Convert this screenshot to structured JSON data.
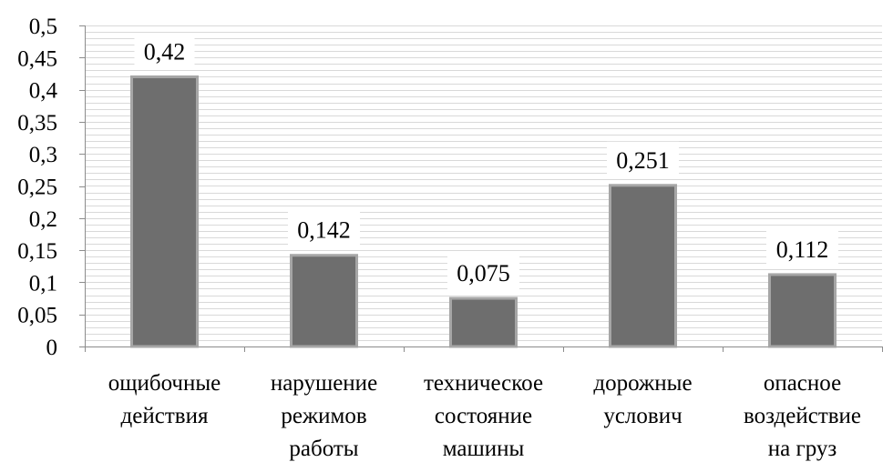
{
  "chart_data": {
    "type": "bar",
    "title": "",
    "xlabel": "",
    "ylabel": "",
    "categories": [
      [
        "ощибочные",
        "действия"
      ],
      [
        "нарушение",
        "режимов",
        "работы"
      ],
      [
        "техническое",
        "состояние",
        "машины"
      ],
      [
        "дорожные",
        "услович"
      ],
      [
        "опасное",
        "воздействие",
        "на груз"
      ]
    ],
    "values": [
      0.42,
      0.142,
      0.075,
      0.251,
      0.112
    ],
    "data_labels": [
      "0,42",
      "0,142",
      "0,075",
      "0,251",
      "0,112"
    ],
    "ylim": [
      0,
      0.5
    ],
    "yticks": [
      0,
      0.05,
      0.1,
      0.15,
      0.2,
      0.25,
      0.3,
      0.35,
      0.4,
      0.45,
      0.5
    ],
    "ytick_labels": [
      "0",
      "0,05",
      "0,1",
      "0,15",
      "0,2",
      "0,25",
      "0,3",
      "0,35",
      "0,4",
      "0,45",
      "0,5"
    ],
    "grid": true,
    "legend": "none",
    "colors": {
      "bar_fill": "#6e6e6e",
      "bar_edge": "#a6a6a6",
      "grid": "#d9d9d9",
      "axis": "#8c8c8c"
    }
  }
}
